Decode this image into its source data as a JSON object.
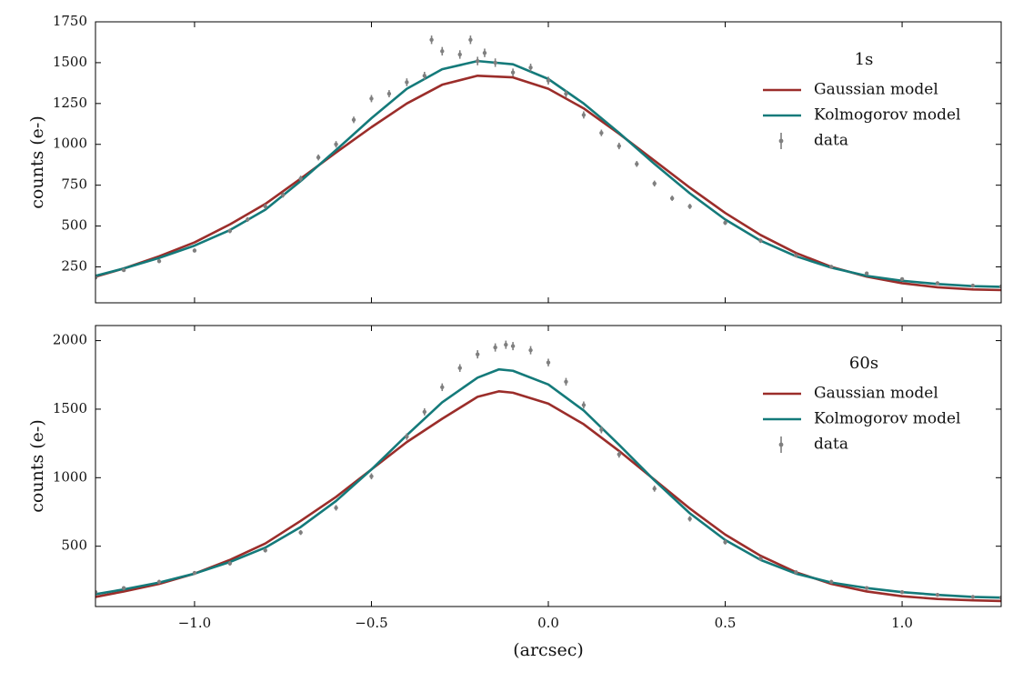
{
  "figure": {
    "xlabel": "(arcsec)",
    "xlim": [
      -1.28,
      1.28
    ],
    "xticks": [
      -1.0,
      -0.5,
      0.0,
      0.5,
      1.0
    ],
    "xtick_labels": [
      "−1.0",
      "−0.5",
      "0.0",
      "0.5",
      "1.0"
    ]
  },
  "chart_data": [
    {
      "type": "line",
      "title": "1s",
      "ylabel": "counts (e-)",
      "xlim": [
        -1.28,
        1.28
      ],
      "ylim": [
        30,
        1750
      ],
      "yticks": [
        250,
        500,
        750,
        1000,
        1250,
        1500,
        1750
      ],
      "ytick_labels": [
        "250",
        "500",
        "750",
        "1000",
        "1250",
        "1500",
        "1750"
      ],
      "grid": false,
      "legend_position": "upper right",
      "legend": [
        "Gaussian model",
        "Kolmogorov model",
        "data"
      ],
      "series": [
        {
          "name": "Gaussian model",
          "color": "#9b2d2a",
          "x": [
            -1.28,
            -1.2,
            -1.1,
            -1.0,
            -0.9,
            -0.8,
            -0.7,
            -0.6,
            -0.5,
            -0.4,
            -0.3,
            -0.2,
            -0.1,
            0.0,
            0.1,
            0.2,
            0.3,
            0.4,
            0.5,
            0.6,
            0.7,
            0.8,
            0.9,
            1.0,
            1.1,
            1.2,
            1.28
          ],
          "y": [
            190,
            240,
            315,
            400,
            510,
            635,
            790,
            950,
            1105,
            1250,
            1365,
            1420,
            1410,
            1340,
            1220,
            1065,
            900,
            735,
            580,
            445,
            335,
            250,
            190,
            150,
            125,
            112,
            108
          ]
        },
        {
          "name": "Kolmogorov model",
          "color": "#147a7a",
          "x": [
            -1.28,
            -1.2,
            -1.1,
            -1.0,
            -0.9,
            -0.8,
            -0.7,
            -0.6,
            -0.5,
            -0.4,
            -0.3,
            -0.2,
            -0.1,
            0.0,
            0.1,
            0.2,
            0.3,
            0.4,
            0.5,
            0.6,
            0.7,
            0.8,
            0.9,
            1.0,
            1.1,
            1.2,
            1.28
          ],
          "y": [
            195,
            240,
            305,
            380,
            475,
            600,
            775,
            965,
            1160,
            1340,
            1460,
            1510,
            1490,
            1400,
            1250,
            1070,
            880,
            700,
            540,
            410,
            315,
            245,
            195,
            165,
            145,
            132,
            128
          ]
        },
        {
          "name": "data",
          "color": "#7f7f7f",
          "marker": "point-with-errorbar",
          "x": [
            -1.28,
            -1.2,
            -1.1,
            -1.0,
            -0.9,
            -0.85,
            -0.8,
            -0.75,
            -0.7,
            -0.65,
            -0.6,
            -0.55,
            -0.5,
            -0.45,
            -0.4,
            -0.35,
            -0.33,
            -0.3,
            -0.25,
            -0.22,
            -0.2,
            -0.18,
            -0.15,
            -0.1,
            -0.05,
            0.0,
            0.05,
            0.1,
            0.15,
            0.2,
            0.25,
            0.3,
            0.35,
            0.4,
            0.5,
            0.6,
            0.7,
            0.8,
            0.9,
            1.0,
            1.1,
            1.2,
            1.28
          ],
          "y": [
            185,
            230,
            285,
            350,
            470,
            540,
            620,
            690,
            790,
            920,
            1000,
            1150,
            1280,
            1310,
            1380,
            1420,
            1640,
            1570,
            1550,
            1640,
            1510,
            1560,
            1500,
            1440,
            1470,
            1390,
            1310,
            1180,
            1070,
            990,
            880,
            760,
            670,
            620,
            520,
            410,
            320,
            250,
            210,
            175,
            150,
            135,
            130
          ],
          "errors": [
            10,
            10,
            12,
            12,
            14,
            14,
            16,
            16,
            18,
            18,
            20,
            20,
            22,
            22,
            24,
            24,
            26,
            26,
            26,
            26,
            26,
            26,
            26,
            24,
            24,
            24,
            22,
            22,
            20,
            20,
            18,
            18,
            16,
            16,
            14,
            14,
            12,
            12,
            10,
            10,
            10,
            10,
            10
          ]
        }
      ]
    },
    {
      "type": "line",
      "title": "60s",
      "ylabel": "counts (e-)",
      "xlim": [
        -1.28,
        1.28
      ],
      "ylim": [
        60,
        2110
      ],
      "yticks": [
        500,
        1000,
        1500,
        2000
      ],
      "ytick_labels": [
        "500",
        "1000",
        "1500",
        "2000"
      ],
      "grid": false,
      "legend_position": "upper right",
      "legend": [
        "Gaussian model",
        "Kolmogorov model",
        "data"
      ],
      "series": [
        {
          "name": "Gaussian model",
          "color": "#9b2d2a",
          "x": [
            -1.28,
            -1.2,
            -1.1,
            -1.0,
            -0.9,
            -0.8,
            -0.7,
            -0.6,
            -0.5,
            -0.4,
            -0.3,
            -0.2,
            -0.14,
            -0.1,
            0.0,
            0.1,
            0.2,
            0.3,
            0.4,
            0.5,
            0.6,
            0.7,
            0.8,
            0.9,
            1.0,
            1.1,
            1.2,
            1.28
          ],
          "y": [
            130,
            170,
            225,
            300,
            400,
            520,
            685,
            860,
            1060,
            1260,
            1430,
            1590,
            1630,
            1620,
            1540,
            1390,
            1195,
            985,
            775,
            585,
            430,
            310,
            225,
            170,
            135,
            115,
            105,
            100
          ]
        },
        {
          "name": "Kolmogorov model",
          "color": "#147a7a",
          "x": [
            -1.28,
            -1.2,
            -1.1,
            -1.0,
            -0.9,
            -0.8,
            -0.7,
            -0.6,
            -0.5,
            -0.4,
            -0.3,
            -0.2,
            -0.14,
            -0.1,
            0.0,
            0.1,
            0.2,
            0.3,
            0.4,
            0.5,
            0.6,
            0.7,
            0.8,
            0.9,
            1.0,
            1.1,
            1.2,
            1.28
          ],
          "y": [
            150,
            185,
            235,
            300,
            385,
            490,
            640,
            830,
            1060,
            1310,
            1550,
            1730,
            1790,
            1780,
            1680,
            1490,
            1240,
            980,
            740,
            545,
            400,
            300,
            235,
            195,
            165,
            145,
            130,
            125
          ]
        },
        {
          "name": "data",
          "color": "#7f7f7f",
          "marker": "point-with-errorbar",
          "x": [
            -1.28,
            -1.2,
            -1.1,
            -1.0,
            -0.9,
            -0.8,
            -0.7,
            -0.6,
            -0.5,
            -0.4,
            -0.35,
            -0.3,
            -0.25,
            -0.2,
            -0.15,
            -0.12,
            -0.1,
            -0.05,
            0.0,
            0.05,
            0.1,
            0.15,
            0.2,
            0.3,
            0.4,
            0.5,
            0.6,
            0.7,
            0.8,
            0.9,
            1.0,
            1.1,
            1.2,
            1.28
          ],
          "y": [
            165,
            195,
            240,
            305,
            375,
            470,
            600,
            780,
            1010,
            1300,
            1480,
            1660,
            1800,
            1900,
            1950,
            1970,
            1960,
            1930,
            1840,
            1700,
            1530,
            1350,
            1170,
            920,
            700,
            530,
            410,
            310,
            240,
            195,
            165,
            145,
            130,
            125
          ],
          "errors": [
            12,
            12,
            14,
            14,
            16,
            16,
            18,
            20,
            22,
            24,
            26,
            28,
            28,
            30,
            30,
            30,
            30,
            30,
            28,
            28,
            26,
            26,
            24,
            22,
            20,
            18,
            16,
            14,
            14,
            12,
            12,
            12,
            12,
            12
          ]
        }
      ]
    }
  ]
}
